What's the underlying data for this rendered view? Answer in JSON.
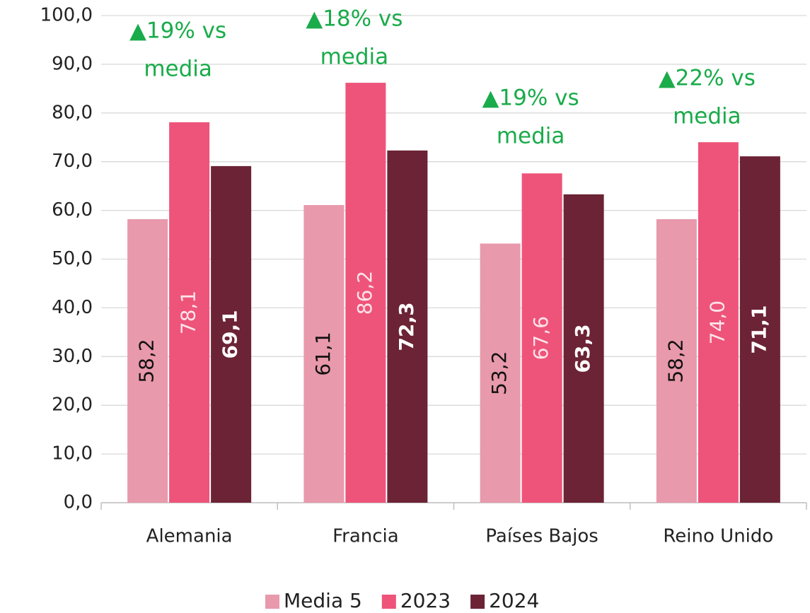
{
  "chart_data": {
    "type": "bar",
    "categories": [
      "Alemania",
      "Francia",
      "Países Bajos",
      "Reino Unido"
    ],
    "series": [
      {
        "name": "Media 5",
        "color": "#e899ab",
        "label_color": "#111111",
        "values": [
          58.2,
          61.1,
          53.2,
          58.2
        ],
        "value_labels": [
          "58,2",
          "61,1",
          "53,2",
          "58,2"
        ]
      },
      {
        "name": "2023",
        "color": "#ee547a",
        "label_color": "#fde4ea",
        "values": [
          78.1,
          86.2,
          67.6,
          74.0
        ],
        "value_labels": [
          "78,1",
          "86,2",
          "67,6",
          "74,0"
        ]
      },
      {
        "name": "2024",
        "color": "#6b2335",
        "label_color": "#ffffff",
        "values": [
          69.1,
          72.3,
          63.3,
          71.1
        ],
        "value_labels": [
          "69,1",
          "72,3",
          "63,3",
          "71,1"
        ]
      }
    ],
    "annotations": [
      [
        "▲19% vs",
        "media"
      ],
      [
        "▲18% vs",
        "media"
      ],
      [
        "▲19% vs",
        "media"
      ],
      [
        "▲22% vs",
        "media"
      ]
    ],
    "ylim": [
      0,
      100
    ],
    "yticks": [
      {
        "value": 0,
        "label": "0,0"
      },
      {
        "value": 10,
        "label": "10,0"
      },
      {
        "value": 20,
        "label": "20,0"
      },
      {
        "value": 30,
        "label": "30,0"
      },
      {
        "value": 40,
        "label": "40,0"
      },
      {
        "value": 50,
        "label": "50,0"
      },
      {
        "value": 60,
        "label": "60,0"
      },
      {
        "value": 70,
        "label": "70,0"
      },
      {
        "value": 80,
        "label": "80,0"
      },
      {
        "value": 90,
        "label": "90,0"
      },
      {
        "value": 100,
        "label": "100,0"
      }
    ],
    "grid": true,
    "legend": "bottom"
  }
}
